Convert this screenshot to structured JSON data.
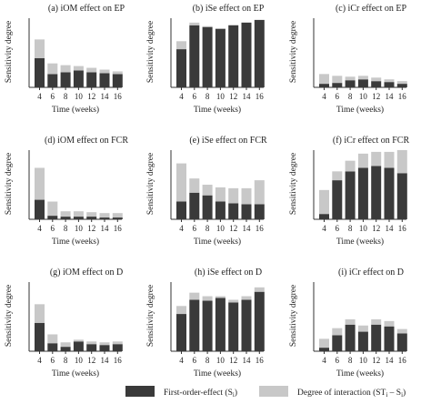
{
  "colors": {
    "first_order": "#3a3a3a",
    "interaction": "#c8c8c8",
    "axis": "#333333"
  },
  "legend": {
    "first_order_label": "First-order-effect (S",
    "first_order_sub": "i",
    "first_order_close": ")",
    "interaction_label": "Degree of interaction (ST",
    "interaction_sub1": "i",
    "interaction_mid": " – S",
    "interaction_sub2": "i",
    "interaction_close": ")"
  },
  "chart_data": [
    {
      "type": "bar",
      "stacked": true,
      "title": "(a) iOM effect on EP",
      "xlabel": "Time (weeks)",
      "ylabel": "Sensitivity degree",
      "ylim": [
        0,
        0.8
      ],
      "categories": [
        "4",
        "6",
        "8",
        "10",
        "12",
        "14",
        "16"
      ],
      "series": [
        {
          "name": "First-order-effect (Si)",
          "values": [
            0.33,
            0.15,
            0.17,
            0.19,
            0.17,
            0.16,
            0.15
          ]
        },
        {
          "name": "Degree of interaction (STi – Si)",
          "values": [
            0.21,
            0.12,
            0.08,
            0.05,
            0.05,
            0.04,
            0.03
          ]
        }
      ]
    },
    {
      "type": "bar",
      "stacked": true,
      "title": "(b) iSe effect on EP",
      "xlabel": "Time (weeks)",
      "ylabel": "Sensitivity degree",
      "ylim": [
        0,
        0.8
      ],
      "categories": [
        "4",
        "6",
        "8",
        "10",
        "12",
        "14",
        "16"
      ],
      "series": [
        {
          "name": "First-order-effect (Si)",
          "values": [
            0.43,
            0.7,
            0.68,
            0.66,
            0.7,
            0.73,
            0.76
          ]
        },
        {
          "name": "Degree of interaction (STi – Si)",
          "values": [
            0.09,
            0.03,
            0.01,
            0.0,
            0.0,
            0.0,
            0.0
          ]
        }
      ]
    },
    {
      "type": "bar",
      "stacked": true,
      "title": "(c) iCr effect on EP",
      "xlabel": "Time (weeks)",
      "ylabel": "Sensitivity degree",
      "ylim": [
        0,
        0.8
      ],
      "categories": [
        "4",
        "6",
        "8",
        "10",
        "12",
        "14",
        "16"
      ],
      "series": [
        {
          "name": "First-order-effect (Si)",
          "values": [
            0.04,
            0.05,
            0.08,
            0.09,
            0.07,
            0.06,
            0.04
          ]
        },
        {
          "name": "Degree of interaction (STi – Si)",
          "values": [
            0.11,
            0.08,
            0.04,
            0.04,
            0.04,
            0.03,
            0.03
          ]
        }
      ]
    },
    {
      "type": "bar",
      "stacked": true,
      "title": "(d) iOM effect on FCR",
      "xlabel": "Time (weeks)",
      "ylabel": "Sensitivity degree",
      "ylim": [
        0,
        0.8
      ],
      "categories": [
        "4",
        "6",
        "8",
        "10",
        "12",
        "14",
        "16"
      ],
      "series": [
        {
          "name": "First-order-effect (Si)",
          "values": [
            0.22,
            0.04,
            0.03,
            0.03,
            0.03,
            0.02,
            0.02
          ]
        },
        {
          "name": "Degree of interaction (STi – Si)",
          "values": [
            0.36,
            0.16,
            0.06,
            0.06,
            0.05,
            0.05,
            0.05
          ]
        }
      ]
    },
    {
      "type": "bar",
      "stacked": true,
      "title": "(e) iSe effect on FCR",
      "xlabel": "Time (weeks)",
      "ylabel": "Sensitivity degree",
      "ylim": [
        0,
        0.8
      ],
      "categories": [
        "4",
        "6",
        "8",
        "10",
        "12",
        "14",
        "16"
      ],
      "series": [
        {
          "name": "First-order-effect (Si)",
          "values": [
            0.2,
            0.3,
            0.27,
            0.2,
            0.18,
            0.17,
            0.17
          ]
        },
        {
          "name": "Degree of interaction (STi – Si)",
          "values": [
            0.43,
            0.16,
            0.12,
            0.16,
            0.17,
            0.18,
            0.27
          ]
        }
      ]
    },
    {
      "type": "bar",
      "stacked": true,
      "title": "(f) iCr effect on FCR",
      "xlabel": "Time (weeks)",
      "ylabel": "Sensitivity degree",
      "ylim": [
        0,
        0.8
      ],
      "categories": [
        "4",
        "6",
        "8",
        "10",
        "12",
        "14",
        "16"
      ],
      "series": [
        {
          "name": "First-order-effect (Si)",
          "values": [
            0.06,
            0.44,
            0.54,
            0.58,
            0.6,
            0.58,
            0.52
          ]
        },
        {
          "name": "Degree of interaction (STi – Si)",
          "values": [
            0.27,
            0.1,
            0.12,
            0.16,
            0.16,
            0.18,
            0.26
          ]
        }
      ]
    },
    {
      "type": "bar",
      "stacked": true,
      "title": "(g) iOM effect on D",
      "xlabel": "Time (weeks)",
      "ylabel": "Sensitivity degree",
      "ylim": [
        0,
        0.8
      ],
      "categories": [
        "4",
        "6",
        "8",
        "10",
        "12",
        "14",
        "16"
      ],
      "series": [
        {
          "name": "First-order-effect (Si)",
          "values": [
            0.32,
            0.09,
            0.05,
            0.11,
            0.08,
            0.07,
            0.08
          ]
        },
        {
          "name": "Degree of interaction (STi – Si)",
          "values": [
            0.21,
            0.1,
            0.05,
            0.02,
            0.03,
            0.03,
            0.03
          ]
        }
      ]
    },
    {
      "type": "bar",
      "stacked": true,
      "title": "(h) iSe effect on D",
      "xlabel": "Time (weeks)",
      "ylabel": "Sensitivity degree",
      "ylim": [
        0,
        0.8
      ],
      "categories": [
        "4",
        "6",
        "8",
        "10",
        "12",
        "14",
        "16"
      ],
      "series": [
        {
          "name": "First-order-effect (Si)",
          "values": [
            0.42,
            0.58,
            0.57,
            0.6,
            0.55,
            0.58,
            0.67
          ]
        },
        {
          "name": "Degree of interaction (STi – Si)",
          "values": [
            0.09,
            0.08,
            0.05,
            0.02,
            0.03,
            0.04,
            0.05
          ]
        }
      ]
    },
    {
      "type": "bar",
      "stacked": true,
      "title": "(i) iCr effect on D",
      "xlabel": "Time (weeks)",
      "ylabel": "Sensitivity degree",
      "ylim": [
        0,
        0.8
      ],
      "categories": [
        "4",
        "6",
        "8",
        "10",
        "12",
        "14",
        "16"
      ],
      "series": [
        {
          "name": "First-order-effect (Si)",
          "values": [
            0.04,
            0.18,
            0.3,
            0.22,
            0.3,
            0.28,
            0.2
          ]
        },
        {
          "name": "Degree of interaction (STi – Si)",
          "values": [
            0.1,
            0.08,
            0.06,
            0.07,
            0.06,
            0.06,
            0.05
          ]
        }
      ]
    }
  ]
}
